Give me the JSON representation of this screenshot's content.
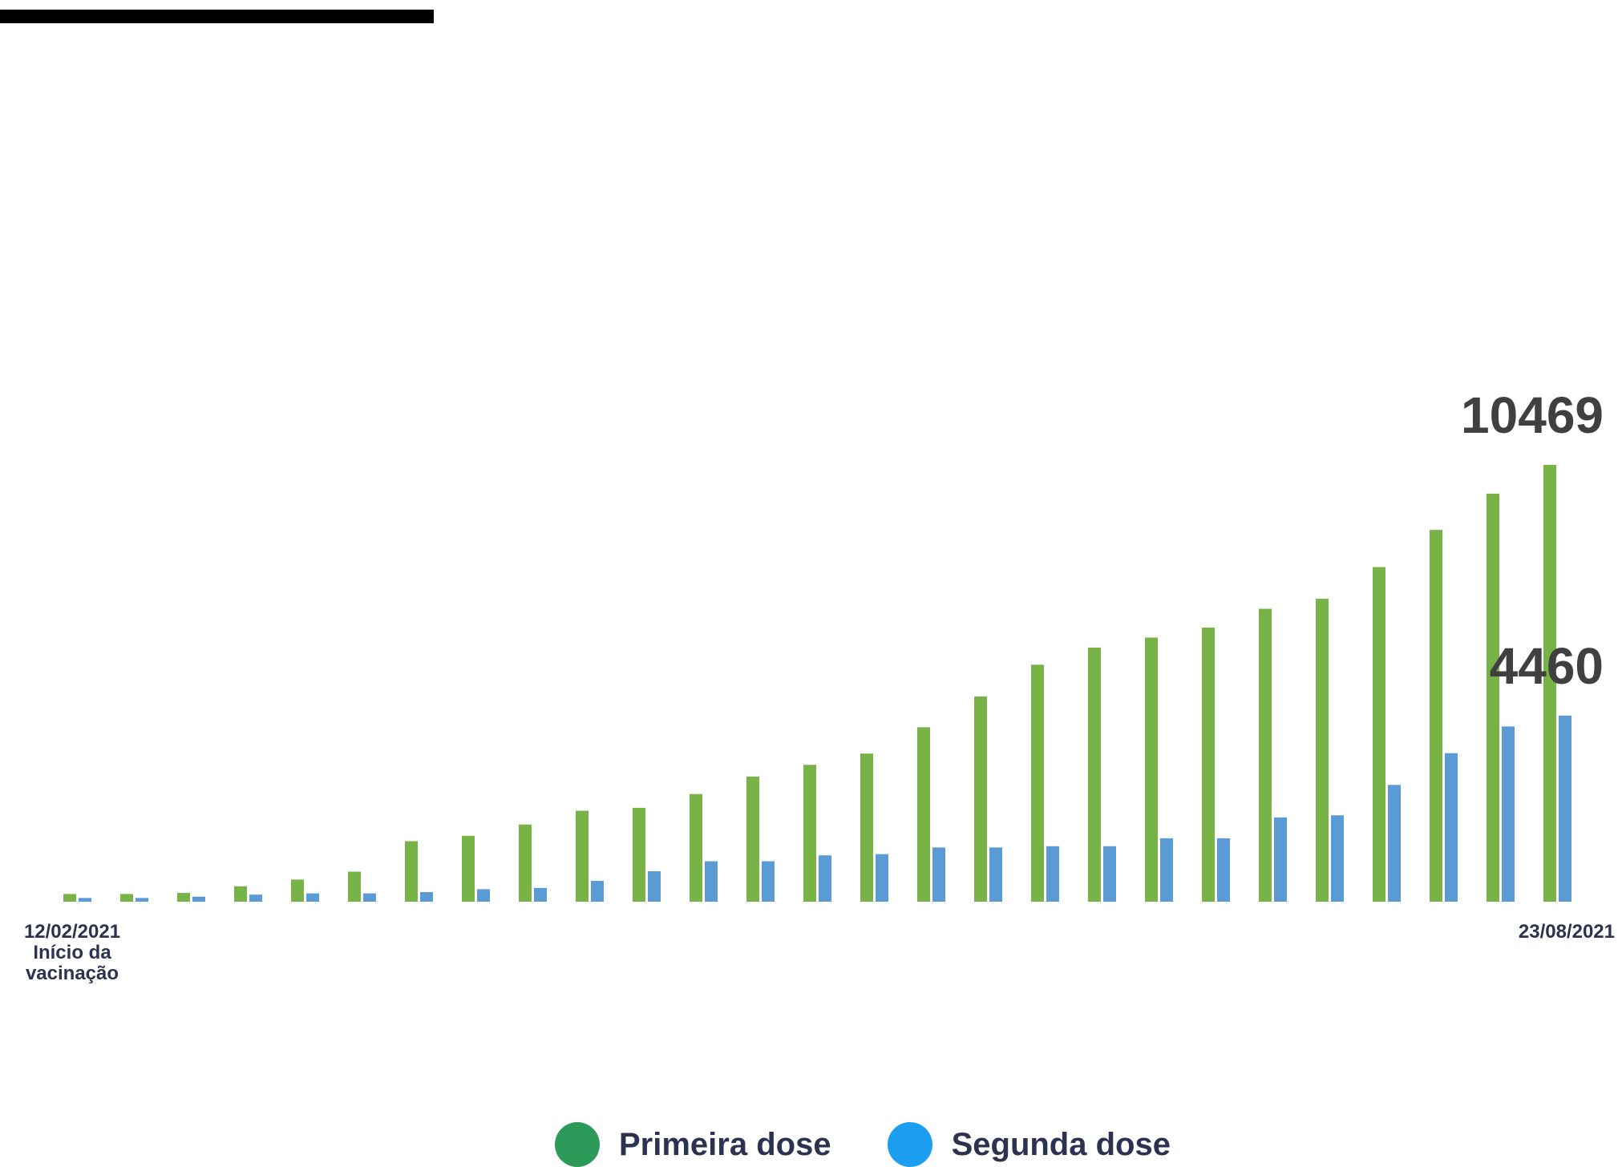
{
  "chart_data": {
    "type": "bar",
    "title": "",
    "xlabel": "",
    "ylabel": "",
    "ylim": [
      0,
      10469
    ],
    "grid": false,
    "legend_position": "bottom-center",
    "categories": [
      "12/02/2021",
      "",
      "",
      "",
      "",
      "",
      "",
      "",
      "",
      "",
      "",
      "",
      "",
      "",
      "",
      "",
      "",
      "",
      "",
      "",
      "",
      "",
      "",
      "",
      "",
      "",
      "23/08/2021"
    ],
    "series": [
      {
        "name": "Primeira dose",
        "color": "#77b347",
        "values": [
          185,
          185,
          210,
          370,
          530,
          720,
          1450,
          1580,
          1850,
          2180,
          2250,
          2580,
          3000,
          3280,
          3550,
          4180,
          4920,
          5680,
          6090,
          6330,
          6570,
          7020,
          7260,
          8020,
          8910,
          9780,
          10469
        ]
      },
      {
        "name": "Segunda dose",
        "color": "#5b9bd5",
        "values": [
          90,
          90,
          120,
          170,
          200,
          200,
          230,
          300,
          330,
          500,
          730,
          970,
          970,
          1110,
          1140,
          1300,
          1300,
          1330,
          1330,
          1520,
          1520,
          2020,
          2070,
          2800,
          3560,
          4200,
          4460
        ]
      }
    ],
    "data_labels": [
      {
        "series": "Primeira dose",
        "text": "10469"
      },
      {
        "series": "Segunda dose",
        "text": "4460"
      }
    ],
    "start_label": {
      "date": "12/02/2021",
      "caption_line1": "Início da",
      "caption_line2": "vacinação"
    },
    "end_label": {
      "date": "23/08/2021"
    },
    "text_color": "#404040",
    "axis_text_color": "#2b3350"
  },
  "legend": {
    "items": [
      {
        "label": "Primeira dose",
        "color": "#2e9a5a"
      },
      {
        "label": "Segunda dose",
        "color": "#1b9ef0"
      }
    ]
  }
}
